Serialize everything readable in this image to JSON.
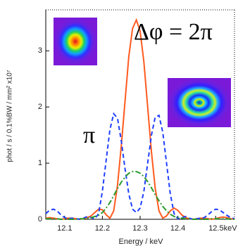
{
  "chart_data": {
    "type": "line",
    "x_label": "Energy / keV",
    "y_label": "phot / s / 0.1%BW / mm² x10⁷",
    "annotations": [
      "Δφ = 2π",
      "π"
    ],
    "x": [
      12.05,
      12.06,
      12.07,
      12.08,
      12.09,
      12.1,
      12.11,
      12.12,
      12.13,
      12.14,
      12.15,
      12.16,
      12.17,
      12.18,
      12.19,
      12.2,
      12.21,
      12.22,
      12.23,
      12.24,
      12.25,
      12.26,
      12.27,
      12.28,
      12.29,
      12.3,
      12.31,
      12.32,
      12.33,
      12.34,
      12.35,
      12.36,
      12.37,
      12.38,
      12.39,
      12.4,
      12.41,
      12.42,
      12.43,
      12.44,
      12.45,
      12.46,
      12.47,
      12.48,
      12.49,
      12.5,
      12.51,
      12.52,
      12.53,
      12.54,
      12.55
    ],
    "series": [
      {
        "color": "#ff5a1f",
        "dash": "none",
        "values": [
          0.02,
          0.03,
          0.02,
          0.01,
          0,
          0.01,
          0.02,
          0.02,
          0.01,
          0,
          0.01,
          0.03,
          0.06,
          0.12,
          0.18,
          0.17,
          0.08,
          0.02,
          0.15,
          0.6,
          1.3,
          2.1,
          2.9,
          3.4,
          3.55,
          3.35,
          2.8,
          2.0,
          1.2,
          0.55,
          0.15,
          0.02,
          0.06,
          0.15,
          0.2,
          0.16,
          0.08,
          0.03,
          0.01,
          0,
          0.01,
          0.02,
          0.02,
          0.01,
          0,
          0.01,
          0.03,
          0.04,
          0.03,
          0.01,
          0
        ]
      },
      {
        "color": "#1f3fff",
        "dash": "6 4",
        "values": [
          0.1,
          0.16,
          0.18,
          0.15,
          0.08,
          0.03,
          0.01,
          0.02,
          0.01,
          0,
          0.02,
          0.05,
          0.03,
          0.01,
          0.1,
          0.5,
          1.05,
          1.6,
          1.88,
          1.8,
          1.4,
          0.9,
          0.45,
          0.18,
          0.12,
          0.2,
          0.5,
          1.0,
          1.5,
          1.82,
          1.85,
          1.55,
          1.0,
          0.45,
          0.1,
          0.01,
          0.03,
          0.05,
          0.02,
          0,
          0.01,
          0.02,
          0.03,
          0.08,
          0.14,
          0.18,
          0.17,
          0.12,
          0.07,
          0.03,
          0.01
        ]
      },
      {
        "color": "#2a9a2a",
        "dash": "8 3 2 3",
        "values": [
          0.01,
          0.01,
          0.01,
          0.01,
          0,
          0,
          0,
          0,
          0,
          0.01,
          0.01,
          0.02,
          0.03,
          0.05,
          0.07,
          0.12,
          0.2,
          0.3,
          0.42,
          0.55,
          0.66,
          0.75,
          0.82,
          0.85,
          0.85,
          0.82,
          0.76,
          0.67,
          0.56,
          0.44,
          0.33,
          0.23,
          0.15,
          0.09,
          0.05,
          0.03,
          0.02,
          0.01,
          0.01,
          0,
          0,
          0,
          0,
          0,
          0.01,
          0.01,
          0.01,
          0.01,
          0.01,
          0,
          0
        ]
      }
    ],
    "xlim": [
      12.05,
      12.55
    ],
    "ylim": [
      0,
      3.73
    ],
    "xticks": [
      12.1,
      12.2,
      12.3,
      12.4,
      {
        "value": 12.5,
        "label": "12.5keV"
      }
    ],
    "yticks": [
      0,
      1,
      2,
      3
    ]
  }
}
